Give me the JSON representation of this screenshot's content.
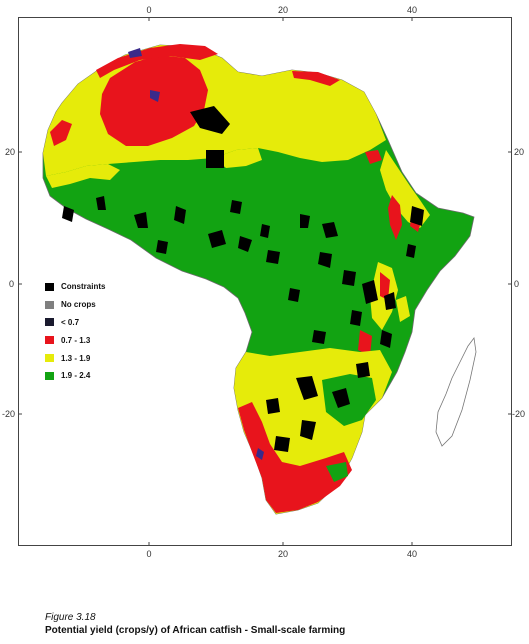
{
  "axes": {
    "x_ticks_top": [
      "0",
      "20",
      "40"
    ],
    "x_ticks_bottom": [
      "0",
      "20",
      "40"
    ],
    "y_ticks_left": [
      "20",
      "0",
      "-20"
    ],
    "y_ticks_right": [
      "20",
      "0",
      "-20"
    ]
  },
  "legend": {
    "items": [
      {
        "label": "Constraints",
        "color": "#000000"
      },
      {
        "label": "No crops",
        "color": "#7f7f7f"
      },
      {
        "label": "< 0.7",
        "color": "#1a1a2e"
      },
      {
        "label": "0.7 - 1.3",
        "color": "#e8141c"
      },
      {
        "label": "1.3 - 1.9",
        "color": "#e6eb0a"
      },
      {
        "label": "1.9 - 2.4",
        "color": "#12a312"
      }
    ]
  },
  "colors": {
    "ocean": "#ffffff",
    "border": "#777777",
    "frame": "#444444"
  },
  "caption": {
    "figure_number": "Figure 3.18",
    "title": "Potential yield (crops/y) of African catfish - Small-scale farming"
  }
}
